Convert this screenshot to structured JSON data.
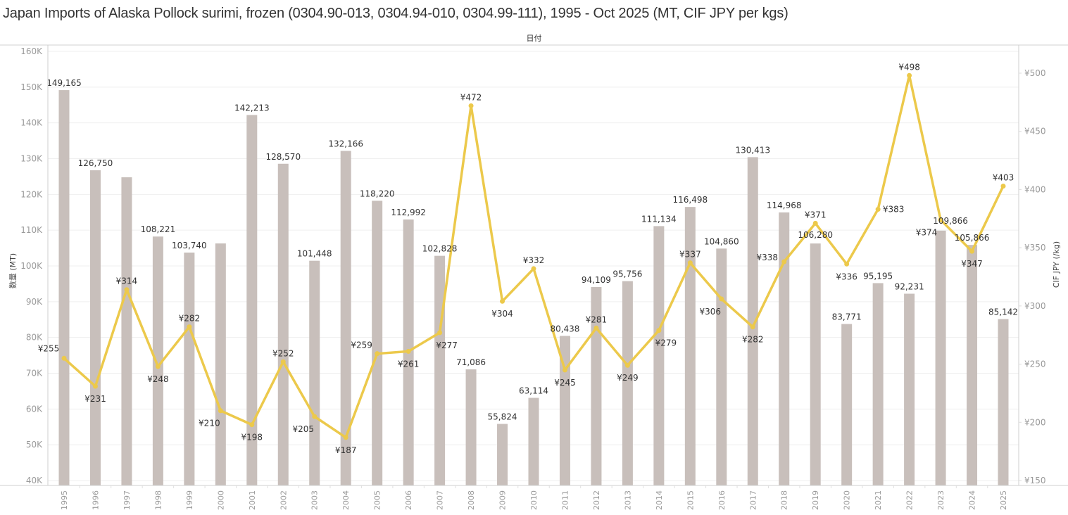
{
  "chart_data": {
    "type": "bar+line",
    "title": "Japan Imports of Alaska Pollock surimi, frozen (0304.90-013, 0304.94-010, 0304.99-111), 1995 - Oct 2025 (MT, CIF JPY per kgs)",
    "column_header": "日付",
    "categories": [
      "1995",
      "1996",
      "1997",
      "1998",
      "1999",
      "2000",
      "2001",
      "2002",
      "2003",
      "2004",
      "2005",
      "2006",
      "2007",
      "2008",
      "2009",
      "2010",
      "2011",
      "2012",
      "2013",
      "2014",
      "2015",
      "2016",
      "2017",
      "2018",
      "2019",
      "2020",
      "2021",
      "2022",
      "2023",
      "2024",
      "2025"
    ],
    "series": [
      {
        "name": "数量 (MT)",
        "type": "bar",
        "axis": "left",
        "color": "#c8bfbb",
        "values": [
          149165,
          126750,
          124800,
          108221,
          103740,
          106300,
          142213,
          128570,
          101448,
          132166,
          118220,
          112992,
          102828,
          71086,
          55824,
          63114,
          80438,
          94109,
          95756,
          111134,
          116498,
          104860,
          130413,
          114968,
          106280,
          83771,
          95195,
          92231,
          109866,
          105866,
          85142
        ],
        "labels": [
          "149,165",
          "126,750",
          "",
          "108,221",
          "103,740",
          "",
          "142,213",
          "128,570",
          "101,448",
          "132,166",
          "118,220",
          "112,992",
          "102,828",
          "71,086",
          "55,824",
          "63,114",
          "80,438",
          "94,109",
          "95,756",
          "111,134",
          "116,498",
          "104,860",
          "130,413",
          "114,968",
          "106,280",
          "83,771",
          "95,195",
          "92,231",
          "109,866",
          "105,866",
          "85,142"
        ]
      },
      {
        "name": "CIF JPY (/kg)",
        "type": "line",
        "axis": "right",
        "color": "#ecc94b",
        "values": [
          255,
          231,
          314,
          248,
          282,
          210,
          198,
          252,
          205,
          187,
          259,
          261,
          277,
          472,
          304,
          332,
          245,
          281,
          249,
          279,
          337,
          306,
          282,
          338,
          371,
          336,
          383,
          498,
          374,
          347,
          403
        ],
        "labels": [
          "¥255",
          "¥231",
          "¥314",
          "¥248",
          "¥282",
          "¥210",
          "¥198",
          "¥252",
          "¥205",
          "¥187",
          "¥259",
          "¥261",
          "¥277",
          "¥472",
          "¥304",
          "¥332",
          "¥245",
          "¥281",
          "¥249",
          "¥279",
          "¥337",
          "¥306",
          "¥282",
          "¥338",
          "¥371",
          "¥336",
          "¥383",
          "¥498",
          "¥374",
          "¥347",
          "¥403"
        ]
      }
    ],
    "left_axis": {
      "label": "数量 (MT)",
      "range": [
        40000,
        160000
      ],
      "ticks": [
        40000,
        50000,
        60000,
        70000,
        80000,
        90000,
        100000,
        110000,
        120000,
        130000,
        140000,
        150000,
        160000
      ],
      "tick_labels": [
        "40K",
        "50K",
        "60K",
        "70K",
        "80K",
        "90K",
        "100K",
        "110K",
        "120K",
        "130K",
        "140K",
        "150K",
        "160K"
      ]
    },
    "right_axis": {
      "label": "CIF JPY (/kg)",
      "range": [
        150,
        520
      ],
      "ticks": [
        150,
        200,
        250,
        300,
        350,
        400,
        450,
        500
      ],
      "tick_labels": [
        "¥150",
        "¥200",
        "¥250",
        "¥300",
        "¥350",
        "¥400",
        "¥450",
        "¥500"
      ]
    },
    "grid": true,
    "legend": "none"
  }
}
